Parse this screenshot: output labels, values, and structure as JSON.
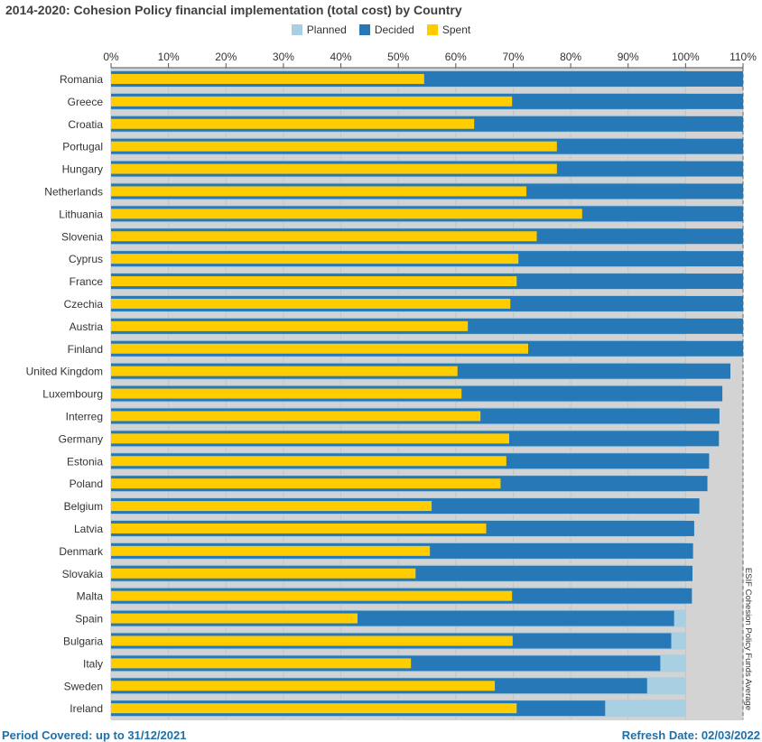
{
  "chart_data": {
    "type": "bar",
    "orientation": "horizontal",
    "title": "2014-2020: Cohesion Policy financial implementation (total cost) by Country",
    "legend": [
      "Planned",
      "Decided",
      "Spent"
    ],
    "legend_position": "top",
    "colors": {
      "Planned": "#a8cfe2",
      "Decided": "#2679b6",
      "Spent": "#ffcc00",
      "background": "#d3d3d3"
    },
    "xlim": [
      0,
      110
    ],
    "xticks": [
      "0%",
      "10%",
      "20%",
      "30%",
      "40%",
      "50%",
      "60%",
      "70%",
      "80%",
      "90%",
      "100%",
      "110%"
    ],
    "grid": true,
    "categories": [
      "Romania",
      "Greece",
      "Croatia",
      "Portugal",
      "Hungary",
      "Netherlands",
      "Lithuania",
      "Slovenia",
      "Cyprus",
      "France",
      "Czechia",
      "Austria",
      "Finland",
      "United Kingdom",
      "Luxembourg",
      "Interreg",
      "Germany",
      "Estonia",
      "Poland",
      "Belgium",
      "Latvia",
      "Denmark",
      "Slovakia",
      "Malta",
      "Spain",
      "Bulgaria",
      "Italy",
      "Sweden",
      "Ireland"
    ],
    "series": [
      {
        "name": "Planned",
        "values": [
          100,
          100,
          100,
          100,
          100,
          100,
          100,
          100,
          100,
          100,
          100,
          100,
          100,
          100,
          100,
          100,
          100,
          100,
          100,
          100,
          100,
          100,
          100,
          100,
          100,
          100,
          100,
          100,
          100
        ]
      },
      {
        "name": "Decided",
        "values": [
          110,
          110,
          110,
          110,
          110,
          110,
          110,
          110,
          110,
          110,
          110,
          110,
          110,
          107.8,
          106.4,
          105.9,
          105.8,
          104.1,
          103.8,
          102.4,
          101.5,
          101.3,
          101.2,
          101.1,
          98.0,
          97.5,
          95.6,
          93.3,
          86.0
        ]
      },
      {
        "name": "Spent",
        "values": [
          54.5,
          69.8,
          63.2,
          77.6,
          77.6,
          72.3,
          82.0,
          74.1,
          70.9,
          70.6,
          69.5,
          62.1,
          72.6,
          60.3,
          61.0,
          64.3,
          69.3,
          68.8,
          67.8,
          55.8,
          65.3,
          55.5,
          53.0,
          69.8,
          42.9,
          69.9,
          52.2,
          66.8,
          70.6
        ]
      }
    ],
    "reference_line": {
      "value": 110,
      "label": "ESIF Cohesion Policy Funds Average"
    }
  },
  "footer": {
    "period": "Period Covered: up to 31/12/2021",
    "refresh": "Refresh Date: 02/03/2022"
  }
}
